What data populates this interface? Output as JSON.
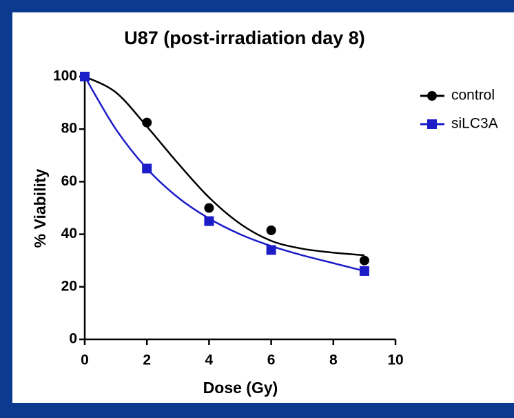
{
  "chart_data": {
    "type": "scatter",
    "title": "U87 (post-irradiation day 8)",
    "x_label": "Dose (Gy)",
    "y_label": "% Viability",
    "xlim": [
      0,
      10
    ],
    "xticks": [
      0,
      2,
      4,
      6,
      8,
      10
    ],
    "ylim": [
      0,
      100
    ],
    "yticks": [
      0,
      20,
      40,
      60,
      80,
      100
    ],
    "legend": "upper right",
    "fit_x": [
      0,
      1,
      2,
      3,
      4,
      5,
      6,
      7,
      8,
      9
    ],
    "series": [
      {
        "name": "control",
        "color": "#000000",
        "marker": "circle",
        "x": [
          0,
          2,
          4,
          6,
          9
        ],
        "values": [
          100,
          82.5,
          50,
          41.5,
          30
        ],
        "fit": [
          100,
          94,
          81,
          67,
          54,
          44,
          37.5,
          34.5,
          33,
          32
        ]
      },
      {
        "name": "siLC3A",
        "color": "#1c1cc8",
        "marker": "square",
        "x": [
          0,
          2,
          4,
          6,
          9
        ],
        "values": [
          100,
          65,
          45,
          34,
          26
        ],
        "fit": [
          100,
          80,
          65,
          54,
          46,
          40,
          35.5,
          32,
          29,
          26
        ]
      }
    ]
  }
}
